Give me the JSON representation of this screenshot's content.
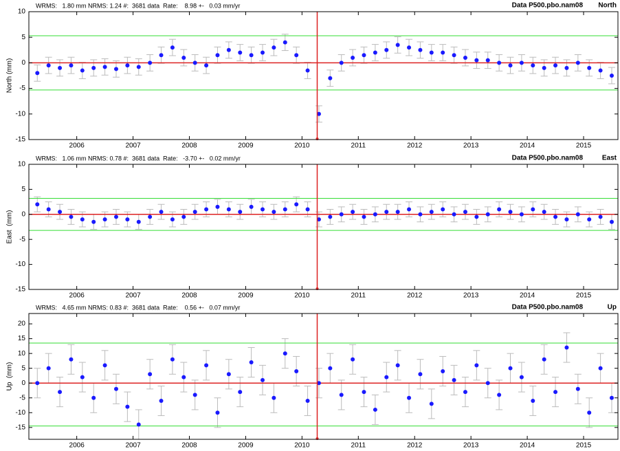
{
  "chart_data": [
    {
      "type": "scatter",
      "header": "WRMS:   1.80 mm NRMS: 1.24 #:  3681 data  Rate:    8.98 +-   0.03 mm/yr",
      "title": "Data P500.pbo.nam08",
      "component": "North",
      "ylabel": "North (mm)",
      "xlim": [
        2005.15,
        2015.61
      ],
      "xticks": [
        2006,
        2007,
        2008,
        2009,
        2010,
        2011,
        2012,
        2013,
        2014,
        2015
      ],
      "ylim": [
        -15,
        10
      ],
      "yticks": [
        -15,
        -10,
        -5,
        0,
        5,
        10
      ],
      "band": [
        -5.3,
        5.3
      ],
      "band_color": "#33dd33",
      "fit_level": 0,
      "fit_color": "#dd2222",
      "event_x": 2010.27,
      "event_color": "#dd2222",
      "color": "#1a1aff",
      "error_color": "#bbbbbb",
      "error": 1.6,
      "x": [
        2005.3,
        2005.5,
        2005.7,
        2005.9,
        2006.1,
        2006.3,
        2006.5,
        2006.7,
        2006.9,
        2007.1,
        2007.3,
        2007.5,
        2007.7,
        2007.9,
        2008.1,
        2008.3,
        2008.5,
        2008.7,
        2008.9,
        2009.1,
        2009.3,
        2009.5,
        2009.7,
        2009.9,
        2010.1,
        2010.3,
        2010.5,
        2010.7,
        2010.9,
        2011.1,
        2011.3,
        2011.5,
        2011.7,
        2011.9,
        2012.1,
        2012.3,
        2012.5,
        2012.7,
        2012.9,
        2013.1,
        2013.3,
        2013.5,
        2013.7,
        2013.9,
        2014.1,
        2014.3,
        2014.5,
        2014.7,
        2014.9,
        2015.1,
        2015.3,
        2015.5
      ],
      "values": [
        -2,
        -0.5,
        -1,
        -0.5,
        -1.5,
        -1,
        -0.8,
        -1.2,
        -0.5,
        -0.8,
        0,
        1.5,
        3,
        1,
        0,
        -0.5,
        1.5,
        2.5,
        2,
        1.5,
        2,
        3,
        4,
        1.5,
        -1.5,
        -10,
        -3,
        0,
        1,
        1.5,
        2,
        2.5,
        3.5,
        3,
        2.5,
        2,
        2,
        1.5,
        1,
        0.5,
        0.5,
        0,
        -0.5,
        0,
        -0.5,
        -1,
        -0.5,
        -1,
        0,
        -1,
        -1.5,
        -2.5
      ]
    },
    {
      "type": "scatter",
      "header": "WRMS:   1.06 mm NRMS: 0.78 #:  3681 data  Rate:   -3.70 +-   0.02 mm/yr",
      "title": "Data P500.pbo.nam08",
      "component": "East",
      "ylabel": "East  (mm)",
      "xlim": [
        2005.15,
        2015.61
      ],
      "xticks": [
        2006,
        2007,
        2008,
        2009,
        2010,
        2011,
        2012,
        2013,
        2014,
        2015
      ],
      "ylim": [
        -15,
        10
      ],
      "yticks": [
        -15,
        -10,
        -5,
        0,
        5,
        10
      ],
      "band": [
        -3.2,
        3.2
      ],
      "band_color": "#33dd33",
      "fit_level": 0,
      "fit_color": "#dd2222",
      "event_x": 2010.27,
      "event_color": "#dd2222",
      "color": "#1a1aff",
      "error_color": "#bbbbbb",
      "error": 1.5,
      "x": [
        2005.3,
        2005.5,
        2005.7,
        2005.9,
        2006.1,
        2006.3,
        2006.5,
        2006.7,
        2006.9,
        2007.1,
        2007.3,
        2007.5,
        2007.7,
        2007.9,
        2008.1,
        2008.3,
        2008.5,
        2008.7,
        2008.9,
        2009.1,
        2009.3,
        2009.5,
        2009.7,
        2009.9,
        2010.1,
        2010.3,
        2010.5,
        2010.7,
        2010.9,
        2011.1,
        2011.3,
        2011.5,
        2011.7,
        2011.9,
        2012.1,
        2012.3,
        2012.5,
        2012.7,
        2012.9,
        2013.1,
        2013.3,
        2013.5,
        2013.7,
        2013.9,
        2014.1,
        2014.3,
        2014.5,
        2014.7,
        2014.9,
        2015.1,
        2015.3,
        2015.5
      ],
      "values": [
        2,
        1,
        0.5,
        -0.5,
        -1,
        -1.5,
        -1,
        -0.5,
        -1,
        -1.5,
        -0.5,
        0.5,
        -1,
        -0.5,
        0.5,
        1,
        1.5,
        1,
        0.5,
        1.5,
        1,
        0.5,
        1,
        2,
        1,
        -1,
        -0.5,
        0,
        0.5,
        -0.5,
        0,
        0.5,
        0.5,
        1,
        0,
        0.5,
        1,
        0,
        0.5,
        -0.5,
        0,
        1,
        0.5,
        0,
        1,
        0.5,
        -0.5,
        -1,
        0,
        -1,
        -0.5,
        -1.5
      ]
    },
    {
      "type": "scatter",
      "header": "WRMS:   4.65 mm NRMS: 0.83 #:  3681 data  Rate:    0.56 +-   0.07 mm/yr",
      "title": "Data P500.pbo.nam08",
      "component": "Up",
      "ylabel": "Up  (mm)",
      "xlim": [
        2005.15,
        2015.61
      ],
      "xticks": [
        2006,
        2007,
        2008,
        2009,
        2010,
        2011,
        2012,
        2013,
        2014,
        2015
      ],
      "ylim": [
        -19,
        23.5
      ],
      "yticks": [
        -15,
        -10,
        -5,
        0,
        5,
        10,
        15,
        20
      ],
      "band": [
        -14.5,
        13.5
      ],
      "band_color": "#33dd33",
      "fit_level": 0,
      "fit_color": "#dd2222",
      "event_x": 2010.27,
      "event_color": "#dd2222",
      "color": "#1a1aff",
      "error_color": "#bbbbbb",
      "error": 5,
      "x": [
        2005.3,
        2005.5,
        2005.7,
        2005.9,
        2006.1,
        2006.3,
        2006.5,
        2006.7,
        2006.9,
        2007.1,
        2007.3,
        2007.5,
        2007.7,
        2007.9,
        2008.1,
        2008.3,
        2008.5,
        2008.7,
        2008.9,
        2009.1,
        2009.3,
        2009.5,
        2009.7,
        2009.9,
        2010.1,
        2010.3,
        2010.5,
        2010.7,
        2010.9,
        2011.1,
        2011.3,
        2011.5,
        2011.7,
        2011.9,
        2012.1,
        2012.3,
        2012.5,
        2012.7,
        2012.9,
        2013.1,
        2013.3,
        2013.5,
        2013.7,
        2013.9,
        2014.1,
        2014.3,
        2014.5,
        2014.7,
        2014.9,
        2015.1,
        2015.3,
        2015.5
      ],
      "values": [
        0,
        5,
        -3,
        8,
        2,
        -5,
        6,
        -2,
        -8,
        -14,
        3,
        -6,
        8,
        2,
        -4,
        6,
        -10,
        3,
        -3,
        7,
        1,
        -5,
        10,
        4,
        -6,
        0,
        5,
        -4,
        8,
        -3,
        -9,
        2,
        6,
        -5,
        3,
        -7,
        4,
        1,
        -3,
        6,
        0,
        -4,
        5,
        2,
        -6,
        8,
        -3,
        12,
        -2,
        -10,
        5,
        -5
      ]
    }
  ]
}
